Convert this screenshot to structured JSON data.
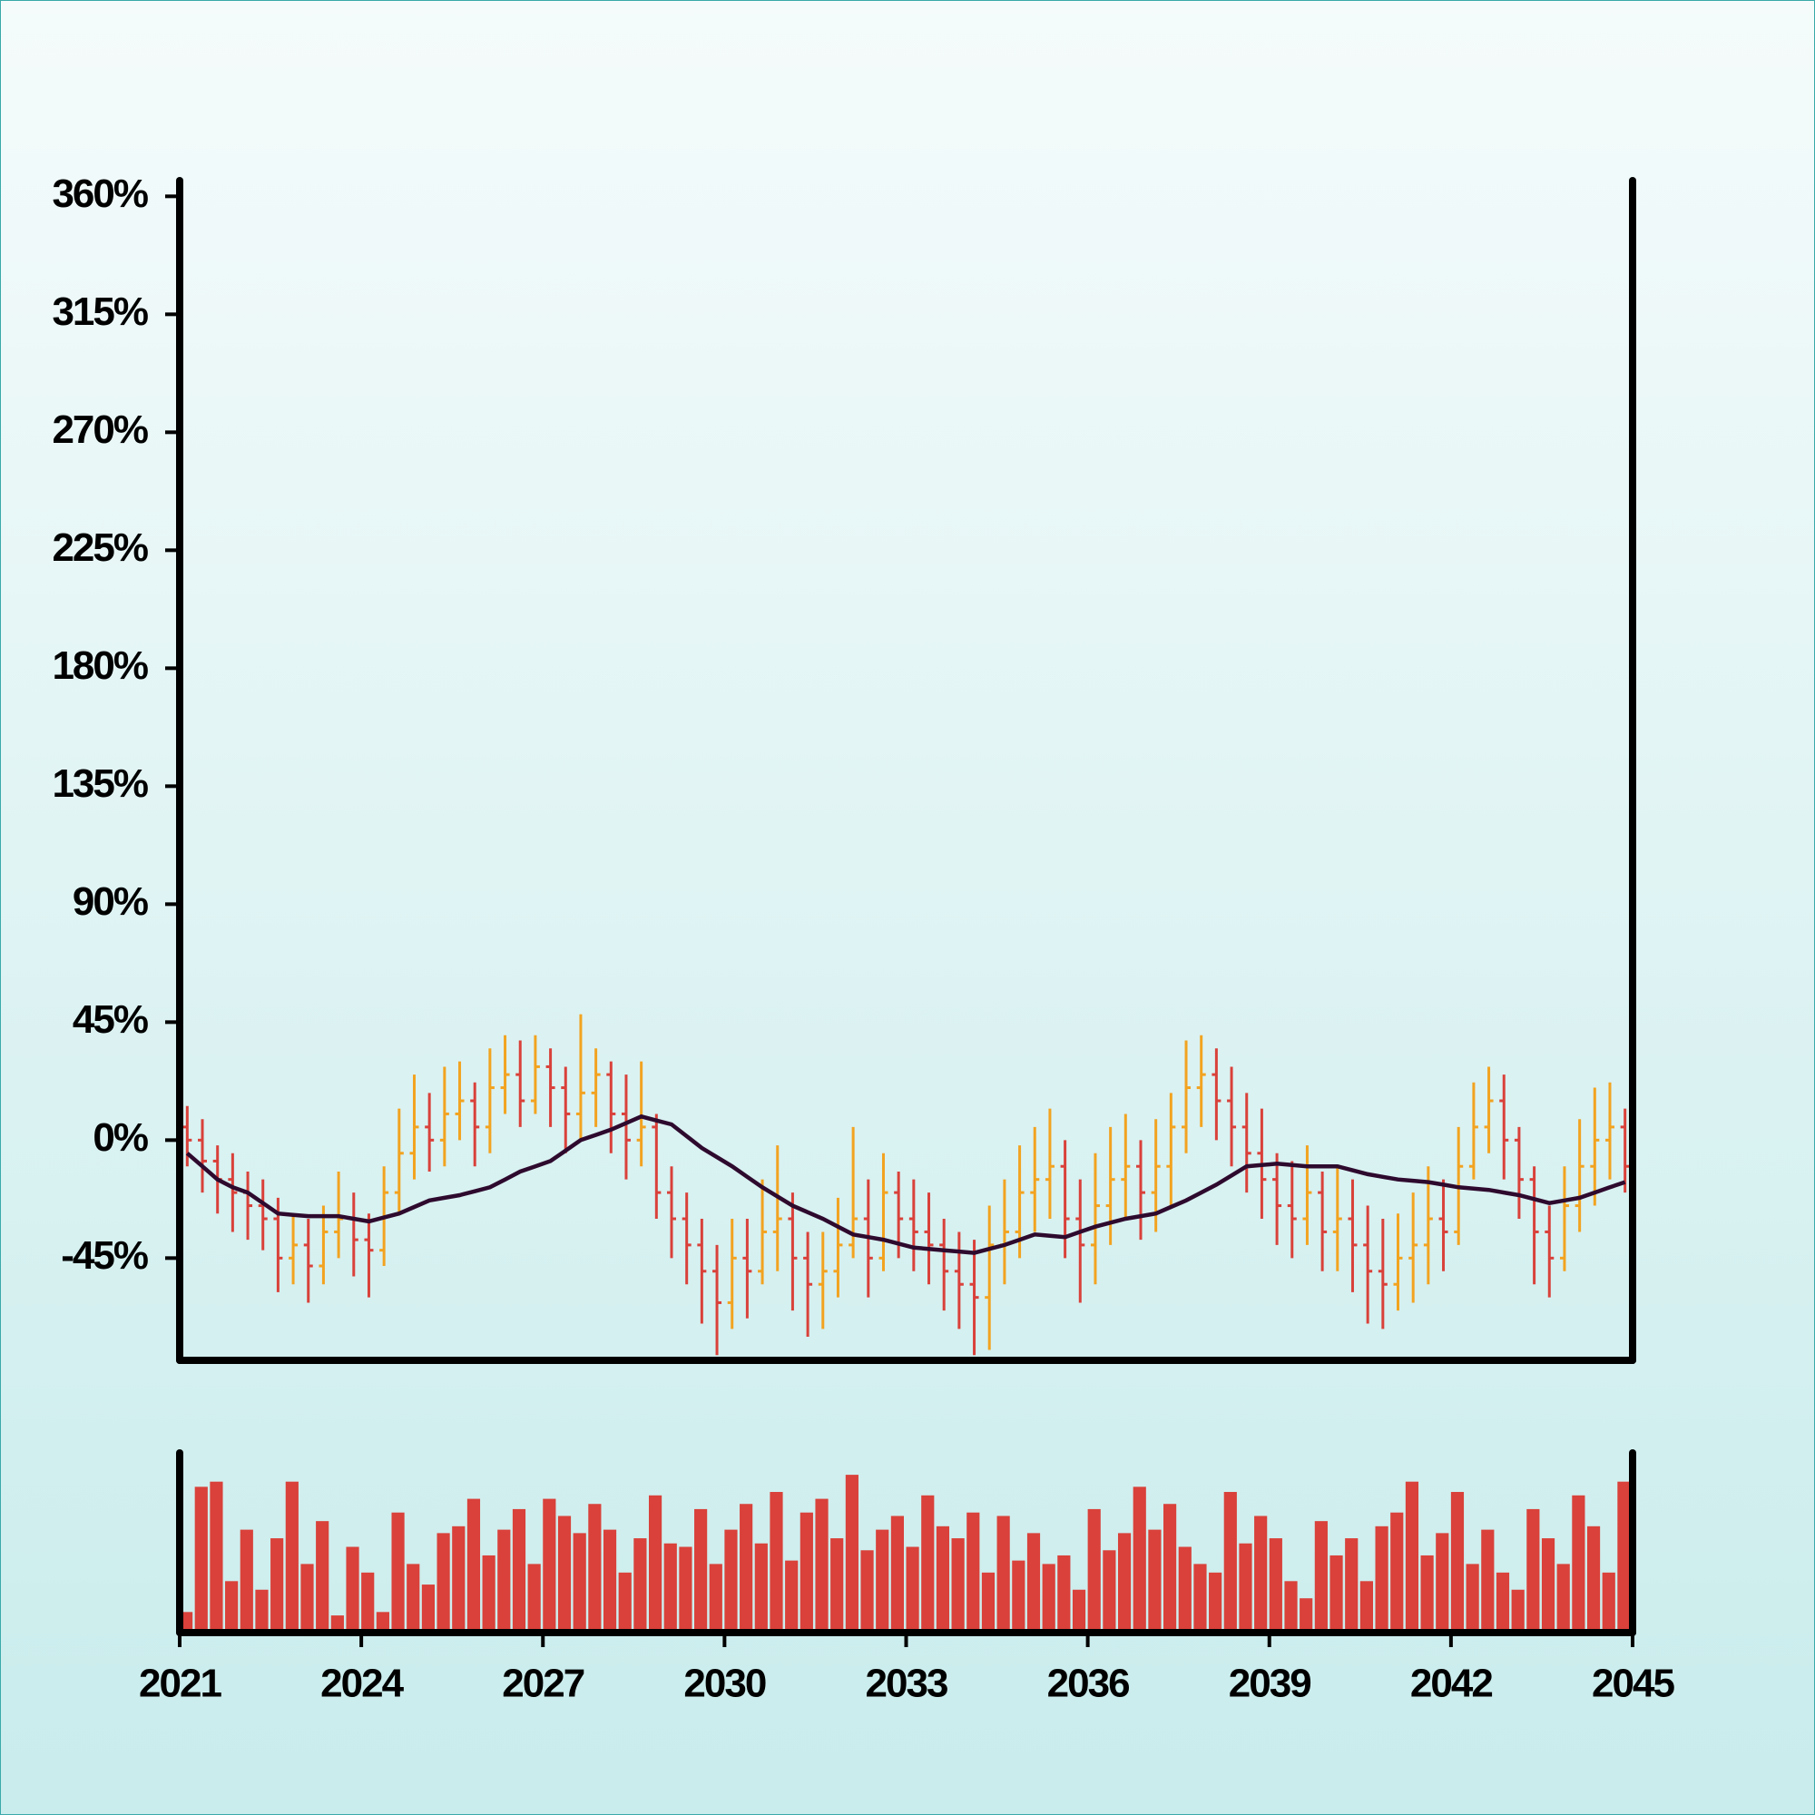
{
  "chart_data": {
    "type": "ohlc",
    "x": [
      2021,
      2021.25,
      2021.5,
      2021.75,
      2022,
      2022.25,
      2022.5,
      2022.75,
      2023,
      2023.25,
      2023.5,
      2023.75,
      2024,
      2024.25,
      2024.5,
      2024.75,
      2025,
      2025.25,
      2025.5,
      2025.75,
      2026,
      2026.25,
      2026.5,
      2026.75,
      2027,
      2027.25,
      2027.5,
      2027.75,
      2028,
      2028.25,
      2028.5,
      2028.75,
      2029,
      2029.25,
      2029.5,
      2029.75,
      2030,
      2030.25,
      2030.5,
      2030.75,
      2031,
      2031.25,
      2031.5,
      2031.75,
      2032,
      2032.25,
      2032.5,
      2032.75,
      2033,
      2033.25,
      2033.5,
      2033.75,
      2034,
      2034.25,
      2034.5,
      2034.75,
      2035,
      2035.25,
      2035.5,
      2035.75,
      2036,
      2036.25,
      2036.5,
      2036.75,
      2037,
      2037.25,
      2037.5,
      2037.75,
      2038,
      2038.25,
      2038.5,
      2038.75,
      2039,
      2039.25,
      2039.5,
      2039.75,
      2040,
      2040.25,
      2040.5,
      2040.75,
      2041,
      2041.25,
      2041.5,
      2041.75,
      2042,
      2042.25,
      2042.5,
      2042.75,
      2043,
      2043.25,
      2043.5,
      2043.75,
      2044,
      2044.25,
      2044.5,
      2044.75
    ],
    "open": [
      5,
      0,
      -8,
      -15,
      -20,
      -25,
      -30,
      -45,
      -40,
      -48,
      -35,
      -30,
      -38,
      -42,
      -20,
      -5,
      5,
      0,
      10,
      15,
      5,
      20,
      25,
      15,
      28,
      20,
      10,
      18,
      25,
      10,
      0,
      5,
      -20,
      -30,
      -40,
      -50,
      -62,
      -45,
      -50,
      -35,
      -30,
      -45,
      -55,
      -50,
      -40,
      -30,
      -45,
      -20,
      -30,
      -35,
      -40,
      -50,
      -55,
      -60,
      -40,
      -35,
      -20,
      -15,
      -10,
      -30,
      -40,
      -25,
      -15,
      -10,
      -20,
      -10,
      5,
      20,
      25,
      15,
      5,
      -5,
      -15,
      -25,
      -30,
      -20,
      -35,
      -30,
      -40,
      -50,
      -55,
      -45,
      -40,
      -30,
      -35,
      -10,
      5,
      15,
      0,
      -15,
      -35,
      -45,
      -25,
      -10,
      0,
      5
    ],
    "high": [
      13,
      8,
      -2,
      -5,
      -12,
      -15,
      -22,
      -28,
      -30,
      -25,
      -12,
      -20,
      -28,
      -10,
      12,
      25,
      18,
      28,
      30,
      22,
      35,
      40,
      38,
      40,
      35,
      28,
      48,
      35,
      30,
      25,
      30,
      10,
      -10,
      -20,
      -30,
      -40,
      -30,
      -30,
      -15,
      -2,
      -20,
      -35,
      -35,
      -22,
      5,
      -15,
      -5,
      -12,
      -15,
      -20,
      -30,
      -35,
      -38,
      -25,
      -15,
      -2,
      5,
      12,
      0,
      -15,
      -5,
      5,
      10,
      0,
      8,
      18,
      38,
      40,
      35,
      28,
      18,
      12,
      -5,
      -8,
      -2,
      -12,
      -10,
      -15,
      -25,
      -30,
      -28,
      -20,
      -10,
      -15,
      5,
      22,
      28,
      25,
      5,
      -10,
      -25,
      -10,
      8,
      20,
      22,
      12
    ],
    "low": [
      -10,
      -20,
      -28,
      -35,
      -38,
      -42,
      -58,
      -55,
      -62,
      -55,
      -45,
      -52,
      -60,
      -48,
      -28,
      -15,
      -12,
      -10,
      0,
      -10,
      -5,
      10,
      5,
      10,
      5,
      -5,
      0,
      5,
      -5,
      -15,
      -10,
      -30,
      -45,
      -55,
      -70,
      -82,
      -72,
      -68,
      -55,
      -50,
      -65,
      -75,
      -72,
      -60,
      -45,
      -60,
      -50,
      -45,
      -50,
      -55,
      -65,
      -72,
      -82,
      -80,
      -55,
      -45,
      -35,
      -30,
      -45,
      -62,
      -55,
      -40,
      -30,
      -38,
      -35,
      -25,
      -5,
      5,
      0,
      -10,
      -20,
      -30,
      -40,
      -45,
      -40,
      -50,
      -50,
      -58,
      -70,
      -72,
      -65,
      -62,
      -55,
      -50,
      -40,
      -15,
      -5,
      -15,
      -30,
      -55,
      -60,
      -50,
      -35,
      -25,
      -15,
      -20
    ],
    "close": [
      0,
      -8,
      -15,
      -20,
      -25,
      -30,
      -45,
      -40,
      -48,
      -35,
      -30,
      -38,
      -42,
      -20,
      -5,
      5,
      0,
      10,
      15,
      5,
      20,
      25,
      15,
      28,
      20,
      10,
      18,
      25,
      10,
      0,
      5,
      -20,
      -30,
      -40,
      -50,
      -62,
      -45,
      -50,
      -35,
      -30,
      -45,
      -55,
      -50,
      -40,
      -30,
      -45,
      -20,
      -30,
      -35,
      -40,
      -50,
      -55,
      -60,
      -40,
      -35,
      -20,
      -15,
      -10,
      -30,
      -40,
      -25,
      -15,
      -10,
      -20,
      -10,
      5,
      20,
      25,
      15,
      5,
      -5,
      -15,
      -25,
      -30,
      -20,
      -35,
      -30,
      -40,
      -50,
      -55,
      -45,
      -40,
      -30,
      -35,
      -10,
      5,
      15,
      0,
      -15,
      -35,
      -45,
      -25,
      -10,
      0,
      5,
      -10
    ],
    "up_color": "#f2a320",
    "down_color": "#d9413a",
    "xlim": [
      2021,
      2045
    ],
    "xticks": [
      2021,
      2024,
      2027,
      2030,
      2033,
      2036,
      2039,
      2042,
      2045
    ],
    "ylim": [
      -84,
      366
    ],
    "yticks": [
      {
        "value": -45,
        "label": "-45%"
      },
      {
        "value": 0,
        "label": "0%"
      },
      {
        "value": 45,
        "label": "45%"
      },
      {
        "value": 90,
        "label": "90%"
      },
      {
        "value": 135,
        "label": "135%"
      },
      {
        "value": 180,
        "label": "180%"
      },
      {
        "value": 225,
        "label": "225%"
      },
      {
        "value": 270,
        "label": "270%"
      },
      {
        "value": 315,
        "label": "315%"
      },
      {
        "value": 360,
        "label": "360%"
      }
    ],
    "overlay": {
      "type": "line",
      "color": "#2e0a2e",
      "values": [
        -5,
        -10,
        -15,
        -18,
        -20,
        -24,
        -28,
        -28.5,
        -29,
        -29,
        -29,
        -30,
        -31,
        -29.5,
        -28,
        -25.5,
        -23,
        -22,
        -21,
        -19.5,
        -18,
        -15,
        -12,
        -10,
        -8,
        -4,
        0,
        2,
        4,
        6.5,
        9,
        7.5,
        6,
        1.5,
        -3,
        -6.5,
        -10,
        -14,
        -18,
        -21.5,
        -25,
        -27.5,
        -30,
        -33,
        -36,
        -37,
        -38,
        -39.5,
        -41,
        -41.5,
        -42,
        -42.5,
        -43,
        -41.5,
        -40,
        -38,
        -36,
        -36.5,
        -37,
        -35,
        -33,
        -31.5,
        -30,
        -29,
        -28,
        -25.5,
        -23,
        -20,
        -17,
        -13.5,
        -10,
        -9.5,
        -9,
        -9.5,
        -10,
        -10,
        -10,
        -11.5,
        -13,
        -14,
        -15,
        -15.5,
        -16,
        -17,
        -18,
        -18.5,
        -19,
        -20,
        -21,
        -22.5,
        -24,
        -23,
        -22,
        -20,
        -18,
        -16
      ]
    },
    "volume": {
      "type": "bar",
      "color": "#d9413a",
      "ylim": [
        0,
        100
      ],
      "values": [
        12,
        85,
        88,
        30,
        60,
        25,
        55,
        88,
        40,
        65,
        10,
        50,
        35,
        12,
        70,
        40,
        28,
        58,
        62,
        78,
        45,
        60,
        72,
        40,
        78,
        68,
        58,
        75,
        60,
        35,
        55,
        80,
        52,
        50,
        72,
        40,
        60,
        75,
        52,
        82,
        42,
        70,
        78,
        55,
        92,
        48,
        60,
        68,
        50,
        80,
        62,
        55,
        70,
        35,
        68,
        42,
        58,
        40,
        45,
        25,
        72,
        48,
        58,
        85,
        60,
        75,
        50,
        40,
        35,
        82,
        52,
        68,
        55,
        30,
        20,
        65,
        45,
        55,
        30,
        62,
        70,
        88,
        45,
        58,
        82,
        40,
        60,
        35,
        25,
        72,
        55,
        40,
        80,
        62,
        35,
        88
      ]
    }
  }
}
